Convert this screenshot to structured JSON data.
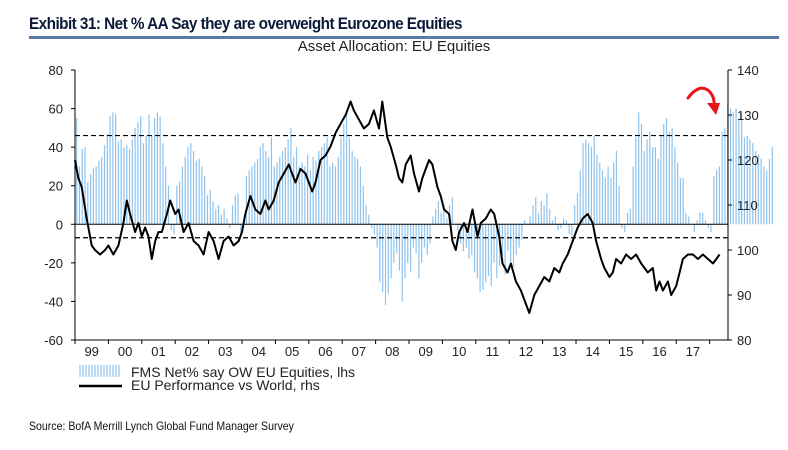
{
  "header": {
    "exhibit_title": "Exhibit 31: Net % AA Say they are overweight Eurozone Equities"
  },
  "footer": {
    "source": "Source:  BofA Merrill Lynch Global Fund Manager Survey"
  },
  "chart_data": {
    "type": "bar+line",
    "title": "Asset Allocation: EU Equities",
    "xlabel": "",
    "ylabel_left": "",
    "ylabel_right": "",
    "x_tick_labels": [
      "99",
      "00",
      "01",
      "02",
      "03",
      "04",
      "05",
      "06",
      "07",
      "08",
      "09",
      "10",
      "11",
      "12",
      "13",
      "14",
      "15",
      "16",
      "17"
    ],
    "x_range": [
      1999.0,
      2018.55
    ],
    "ylim_left": [
      -60,
      80
    ],
    "yticks_left": [
      80,
      60,
      40,
      20,
      0,
      -20,
      -40,
      -60
    ],
    "ylim_right": [
      80,
      140
    ],
    "yticks_right": [
      140,
      130,
      120,
      110,
      100,
      90,
      80
    ],
    "reference_lines_left": [
      {
        "value": 46,
        "style": "dashed"
      },
      {
        "value": 0,
        "style": "solid-thin"
      },
      {
        "value": -7,
        "style": "dashed"
      }
    ],
    "legend": [
      {
        "label": "FMS Net% say OW EU Equities, lhs",
        "type": "bar",
        "color": "#8ec3ee"
      },
      {
        "label": "EU Performance vs World, rhs",
        "type": "line",
        "color": "#000000"
      }
    ],
    "legend_position": "bottom-left",
    "annotation": {
      "type": "arrow",
      "color": "#e8141a",
      "meaning": "downturn at recent peak"
    },
    "series": [
      {
        "name": "FMS Net% say OW EU Equities, lhs",
        "axis": "left",
        "type": "bar",
        "start": 1999.05,
        "step": 0.0833,
        "values": [
          55,
          30,
          39,
          40,
          22,
          26,
          29,
          30,
          33,
          35,
          41,
          47,
          56,
          58,
          57,
          43,
          44,
          40,
          41,
          39,
          44,
          50,
          53,
          56,
          42,
          46,
          57,
          46,
          55,
          58,
          56,
          42,
          30,
          20,
          -3,
          -5,
          20,
          22,
          30,
          35,
          40,
          42,
          38,
          33,
          34,
          30,
          25,
          15,
          18,
          12,
          8,
          10,
          5,
          8,
          3,
          -2,
          10,
          15,
          16,
          -5,
          3,
          25,
          28,
          30,
          32,
          34,
          40,
          42,
          38,
          35,
          45,
          30,
          32,
          35,
          38,
          40,
          44,
          50,
          35,
          40,
          30,
          32,
          30,
          36,
          28,
          35,
          33,
          38,
          40,
          42,
          45,
          30,
          32,
          30,
          35,
          45,
          52,
          58,
          45,
          38,
          35,
          34,
          30,
          20,
          10,
          5,
          -2,
          -5,
          -12,
          -30,
          -35,
          -42,
          -36,
          -28,
          -20,
          -15,
          -24,
          -40,
          -28,
          -20,
          -25,
          -12,
          -15,
          -28,
          -20,
          -12,
          -16,
          -10,
          4,
          8,
          12,
          6,
          10,
          3,
          10,
          14,
          0,
          -3,
          -10,
          -14,
          -12,
          -18,
          -16,
          -25,
          -28,
          -35,
          -34,
          -30,
          -27,
          -32,
          -20,
          -28,
          -22,
          -16,
          -26,
          -14,
          -20,
          -22,
          -16,
          -12,
          -8,
          2,
          0,
          4,
          10,
          14,
          6,
          12,
          10,
          16,
          8,
          2,
          4,
          -3,
          -2,
          3,
          2,
          -5,
          -6,
          10,
          16,
          28,
          42,
          44,
          42,
          40,
          46,
          36,
          32,
          28,
          24,
          30,
          24,
          32,
          38,
          20,
          -2,
          -4,
          6,
          8,
          30,
          45,
          58,
          52,
          38,
          44,
          48,
          40,
          40,
          34,
          46,
          52,
          55,
          48,
          50,
          40,
          32,
          24,
          24,
          6,
          4,
          0,
          -4,
          2,
          6,
          6,
          2,
          -2,
          -4,
          25,
          28,
          30,
          48,
          50,
          62,
          60,
          58,
          60,
          54,
          58,
          45,
          46,
          44,
          42,
          38,
          36,
          34,
          30,
          28,
          34,
          40
        ]
      },
      {
        "name": "EU Performance vs World, rhs",
        "axis": "right",
        "type": "line",
        "points": [
          [
            1999.0,
            120
          ],
          [
            1999.1,
            116
          ],
          [
            1999.2,
            114
          ],
          [
            1999.35,
            107
          ],
          [
            1999.5,
            101
          ],
          [
            1999.6,
            100
          ],
          [
            1999.75,
            99
          ],
          [
            1999.9,
            100
          ],
          [
            2000.0,
            101
          ],
          [
            2000.15,
            99
          ],
          [
            2000.3,
            101
          ],
          [
            2000.45,
            106
          ],
          [
            2000.55,
            111
          ],
          [
            2000.65,
            108
          ],
          [
            2000.8,
            104
          ],
          [
            2000.9,
            106
          ],
          [
            2001.0,
            103
          ],
          [
            2001.1,
            105
          ],
          [
            2001.2,
            103
          ],
          [
            2001.3,
            98
          ],
          [
            2001.4,
            102
          ],
          [
            2001.5,
            104
          ],
          [
            2001.6,
            104
          ],
          [
            2001.75,
            108
          ],
          [
            2001.85,
            111
          ],
          [
            2002.0,
            108
          ],
          [
            2002.1,
            109
          ],
          [
            2002.25,
            104
          ],
          [
            2002.4,
            106
          ],
          [
            2002.55,
            102
          ],
          [
            2002.7,
            101
          ],
          [
            2002.85,
            99
          ],
          [
            2003.0,
            104
          ],
          [
            2003.15,
            102
          ],
          [
            2003.3,
            98
          ],
          [
            2003.45,
            102
          ],
          [
            2003.6,
            103
          ],
          [
            2003.75,
            101
          ],
          [
            2003.9,
            102
          ],
          [
            2004.0,
            104
          ],
          [
            2004.1,
            108
          ],
          [
            2004.25,
            112
          ],
          [
            2004.4,
            109
          ],
          [
            2004.55,
            108
          ],
          [
            2004.7,
            111
          ],
          [
            2004.8,
            109
          ],
          [
            2004.95,
            111
          ],
          [
            2005.1,
            115
          ],
          [
            2005.25,
            117
          ],
          [
            2005.4,
            119
          ],
          [
            2005.5,
            117
          ],
          [
            2005.6,
            115
          ],
          [
            2005.75,
            118
          ],
          [
            2005.9,
            117
          ],
          [
            2006.0,
            115
          ],
          [
            2006.1,
            113
          ],
          [
            2006.2,
            115
          ],
          [
            2006.35,
            120
          ],
          [
            2006.5,
            121
          ],
          [
            2006.65,
            123
          ],
          [
            2006.8,
            126
          ],
          [
            2006.95,
            128
          ],
          [
            2007.1,
            130
          ],
          [
            2007.25,
            133
          ],
          [
            2007.35,
            131
          ],
          [
            2007.5,
            129
          ],
          [
            2007.65,
            127
          ],
          [
            2007.8,
            128
          ],
          [
            2007.95,
            131
          ],
          [
            2008.1,
            127
          ],
          [
            2008.2,
            133
          ],
          [
            2008.35,
            125
          ],
          [
            2008.45,
            123
          ],
          [
            2008.6,
            119
          ],
          [
            2008.7,
            116
          ],
          [
            2008.8,
            115
          ],
          [
            2008.9,
            119
          ],
          [
            2009.05,
            121
          ],
          [
            2009.15,
            117
          ],
          [
            2009.3,
            113
          ],
          [
            2009.4,
            116
          ],
          [
            2009.5,
            118
          ],
          [
            2009.6,
            120
          ],
          [
            2009.7,
            119
          ],
          [
            2009.85,
            114
          ],
          [
            2009.95,
            112
          ],
          [
            2010.05,
            109
          ],
          [
            2010.2,
            108
          ],
          [
            2010.3,
            102
          ],
          [
            2010.4,
            100
          ],
          [
            2010.5,
            104
          ],
          [
            2010.65,
            106
          ],
          [
            2010.75,
            104
          ],
          [
            2010.9,
            109
          ],
          [
            2011.05,
            103
          ],
          [
            2011.15,
            106
          ],
          [
            2011.3,
            107
          ],
          [
            2011.45,
            109
          ],
          [
            2011.55,
            108
          ],
          [
            2011.7,
            103
          ],
          [
            2011.8,
            97
          ],
          [
            2011.95,
            95
          ],
          [
            2012.05,
            97
          ],
          [
            2012.2,
            93
          ],
          [
            2012.35,
            91
          ],
          [
            2012.5,
            88
          ],
          [
            2012.6,
            86
          ],
          [
            2012.75,
            90
          ],
          [
            2012.9,
            92
          ],
          [
            2013.05,
            94
          ],
          [
            2013.2,
            93
          ],
          [
            2013.35,
            96
          ],
          [
            2013.5,
            95
          ],
          [
            2013.6,
            97
          ],
          [
            2013.75,
            99
          ],
          [
            2013.9,
            102
          ],
          [
            2014.05,
            105
          ],
          [
            2014.2,
            107
          ],
          [
            2014.35,
            108
          ],
          [
            2014.5,
            106
          ],
          [
            2014.6,
            102
          ],
          [
            2014.75,
            98
          ],
          [
            2014.85,
            96
          ],
          [
            2015.0,
            94
          ],
          [
            2015.1,
            95
          ],
          [
            2015.2,
            98
          ],
          [
            2015.35,
            97
          ],
          [
            2015.5,
            99
          ],
          [
            2015.65,
            98
          ],
          [
            2015.8,
            99
          ],
          [
            2015.95,
            97
          ],
          [
            2016.05,
            96
          ],
          [
            2016.15,
            95
          ],
          [
            2016.3,
            96
          ],
          [
            2016.4,
            91
          ],
          [
            2016.5,
            93
          ],
          [
            2016.6,
            91
          ],
          [
            2016.75,
            93
          ],
          [
            2016.85,
            90
          ],
          [
            2017.0,
            92
          ],
          [
            2017.1,
            95
          ],
          [
            2017.2,
            98
          ],
          [
            2017.35,
            99
          ],
          [
            2017.5,
            99
          ],
          [
            2017.65,
            98
          ],
          [
            2017.8,
            99
          ],
          [
            2017.95,
            98
          ],
          [
            2018.1,
            97
          ],
          [
            2018.2,
            98
          ],
          [
            2018.3,
            99
          ]
        ]
      }
    ]
  }
}
